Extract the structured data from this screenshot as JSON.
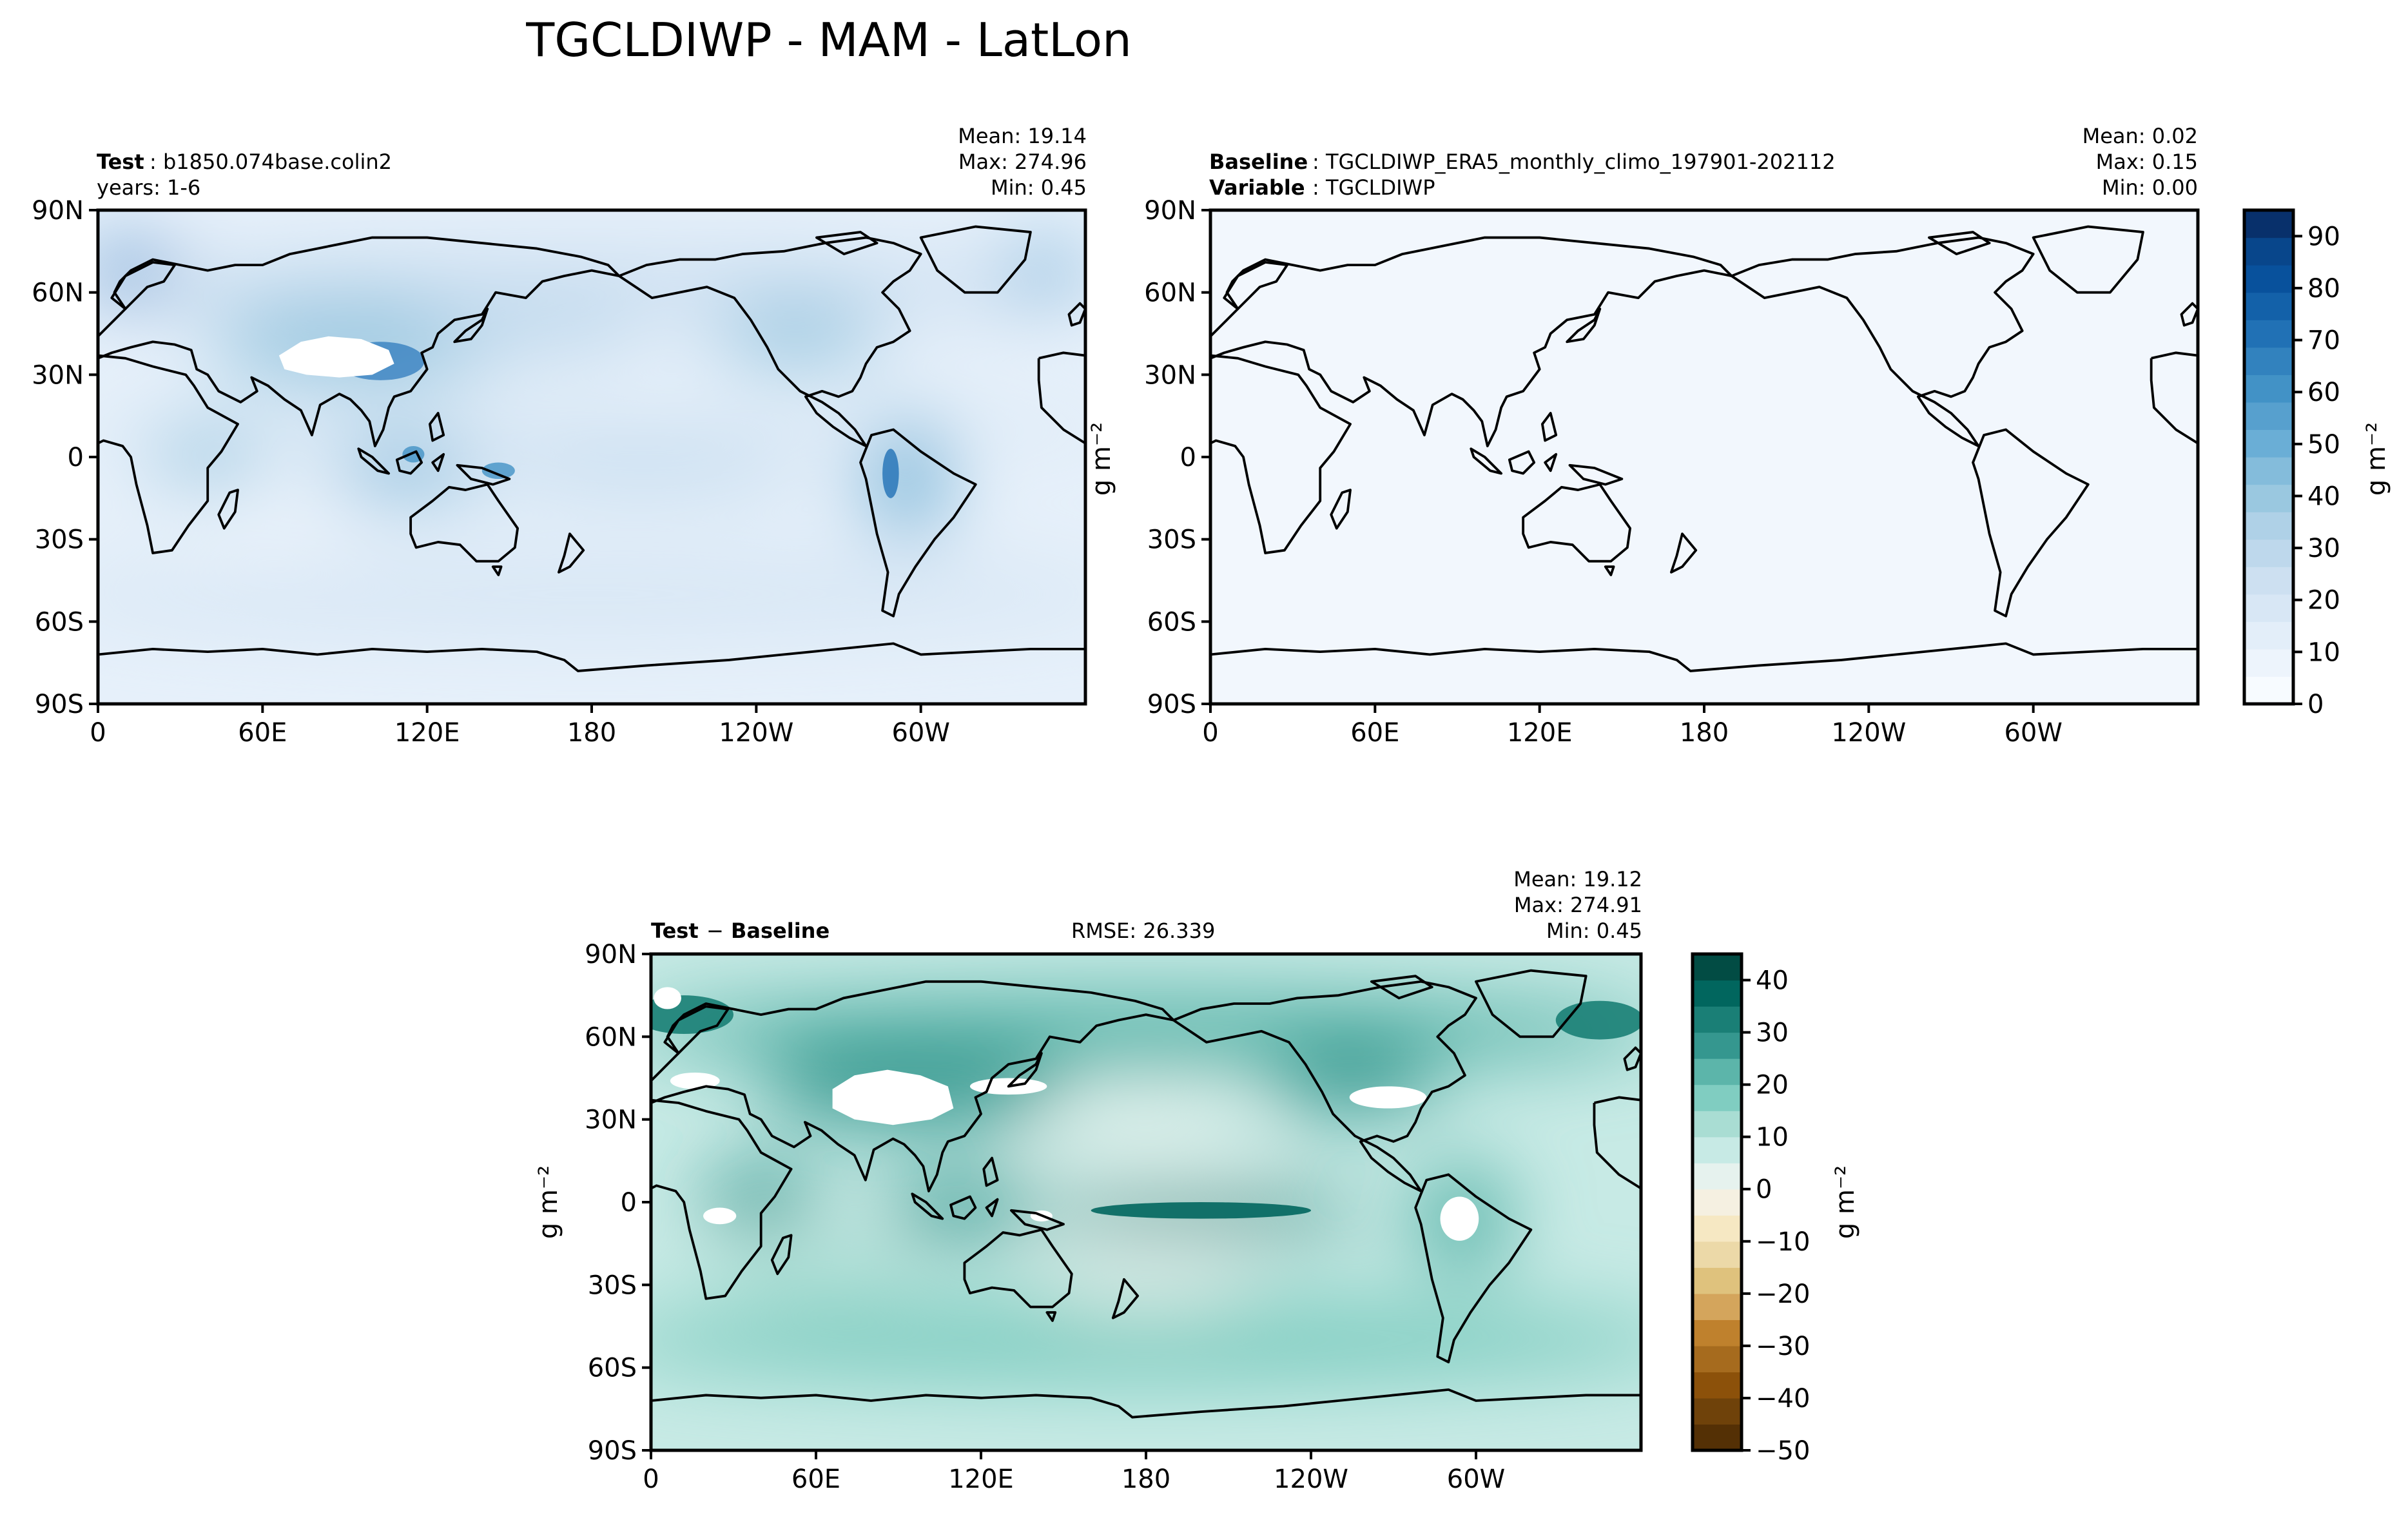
{
  "figure": {
    "title": "TGCLDIWP - MAM - LatLon"
  },
  "panels": {
    "test": {
      "left_bold": "Test",
      "left_text": ": b1850.074base.colin2",
      "line2_text": "years: 1-6",
      "mean": "Mean: 19.14",
      "max": "Max: 274.96",
      "min": "Min:  0.45"
    },
    "baseline": {
      "left_bold": "Baseline",
      "left_text": ": TGCLDIWP_ERA5_monthly_climo_197901-202112",
      "line2_bold": "Variable",
      "line2_text": ": TGCLDIWP",
      "mean": "Mean:  0.02",
      "max": "Max:  0.15",
      "min": "Min:  0.00"
    },
    "diff": {
      "left_bold": "Test",
      "left_sep": " − ",
      "left_bold2": "Baseline",
      "rmse": "RMSE: 26.339",
      "mean": "Mean: 19.12",
      "max": "Max: 274.91",
      "min": "Min:  0.45"
    }
  },
  "axes": {
    "x_ticks": [
      "0",
      "60E",
      "120E",
      "180",
      "120W",
      "60W"
    ],
    "y_ticks": [
      "90N",
      "60N",
      "30N",
      "0",
      "30S",
      "60S",
      "90S"
    ]
  },
  "colorbars": {
    "blue": {
      "unit_label": "g m⁻²",
      "ticks": [
        "90",
        "80",
        "70",
        "60",
        "50",
        "40",
        "30",
        "20",
        "10",
        "0"
      ],
      "colors": [
        "#f7fbff",
        "#edf4fc",
        "#e3eef9",
        "#d8e7f5",
        "#cde0f1",
        "#bed8ec",
        "#afd1e7",
        "#9ac8e0",
        "#84bcdb",
        "#6aaed6",
        "#57a0ce",
        "#4292c6",
        "#3282be",
        "#2171b5",
        "#1361a9",
        "#08519c",
        "#08468b",
        "#08306b"
      ]
    },
    "diff": {
      "unit_label": "g m⁻²",
      "ticks": [
        "40",
        "30",
        "20",
        "10",
        "0",
        "−10",
        "−20",
        "−30",
        "−40",
        "−50"
      ],
      "colors": [
        "#543005",
        "#6f420a",
        "#8c510a",
        "#a66b1e",
        "#bf812d",
        "#d4a55c",
        "#dfc27d",
        "#ecd9a8",
        "#f6e8c3",
        "#f5f0e1",
        "#e6f2ee",
        "#c7eae5",
        "#a9ddd3",
        "#80cdc1",
        "#5cb5aa",
        "#35978f",
        "#1a7f76",
        "#01665e",
        "#024c44"
      ]
    },
    "side_unit_label": "g m⁻²"
  },
  "chart_data": [
    {
      "type": "heatmap",
      "title": "TGCLDIWP - MAM - LatLon",
      "panel": "Test: b1850.074base.colin2, years: 1-6",
      "x_ticks": [
        "0",
        "60E",
        "120E",
        "180",
        "120W",
        "60W"
      ],
      "y_ticks": [
        "90N",
        "60N",
        "30N",
        "0",
        "30S",
        "60S",
        "90S"
      ],
      "xlim": [
        0,
        360
      ],
      "ylim": [
        -90,
        90
      ],
      "stats": {
        "mean": 19.14,
        "max": 274.96,
        "min": 0.45
      },
      "colorbar": {
        "min": 0,
        "max": 95,
        "ticks": [
          0,
          10,
          20,
          30,
          40,
          50,
          60,
          70,
          80,
          90
        ],
        "unit": "g m⁻²"
      }
    },
    {
      "type": "heatmap",
      "panel": "Baseline: TGCLDIWP_ERA5_monthly_climo_197901-202112, Variable: TGCLDIWP",
      "x_ticks": [
        "0",
        "60E",
        "120E",
        "180",
        "120W",
        "60W"
      ],
      "y_ticks": [
        "90N",
        "60N",
        "30N",
        "0",
        "30S",
        "60S",
        "90S"
      ],
      "xlim": [
        0,
        360
      ],
      "ylim": [
        -90,
        90
      ],
      "stats": {
        "mean": 0.02,
        "max": 0.15,
        "min": 0.0
      },
      "colorbar": {
        "min": 0,
        "max": 95,
        "ticks": [
          0,
          10,
          20,
          30,
          40,
          50,
          60,
          70,
          80,
          90
        ],
        "unit": "g m⁻²"
      }
    },
    {
      "type": "heatmap",
      "panel": "Test − Baseline",
      "x_ticks": [
        "0",
        "60E",
        "120E",
        "180",
        "120W",
        "60W"
      ],
      "y_ticks": [
        "90N",
        "60N",
        "30N",
        "0",
        "30S",
        "60S",
        "90S"
      ],
      "xlim": [
        0,
        360
      ],
      "ylim": [
        -90,
        90
      ],
      "stats": {
        "mean": 19.12,
        "max": 274.91,
        "min": 0.45,
        "rmse": 26.339
      },
      "colorbar": {
        "min": -50,
        "max": 45,
        "ticks": [
          -50,
          -40,
          -30,
          -20,
          -10,
          0,
          10,
          20,
          30,
          40
        ],
        "unit": "g m⁻²"
      }
    }
  ]
}
